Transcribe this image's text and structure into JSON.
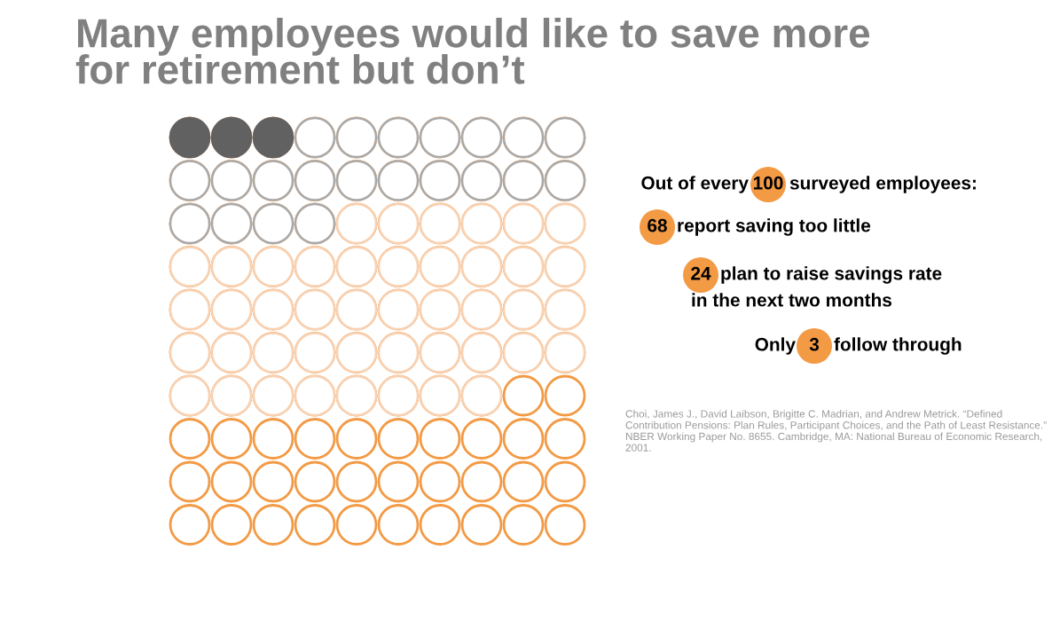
{
  "chart_data": {
    "type": "other",
    "title": "Many employees would like to save more\nfor retirement but don’t",
    "values": [
      100,
      68,
      24,
      3
    ],
    "data_labels": true,
    "colors": [
      "#f39a45",
      "#f8d2b4",
      "#a9a9a9",
      "#616161"
    ],
    "annotations": [
      "Out of every",
      "surveyed employees:",
      "report saving too little",
      "plan to raise savings rate",
      "in the next two months",
      "Only",
      "follow through",
      "Choi, James J., David Laibson, Brigitte C. Madrian, and Andrew Metrick. “Defined Contribution Pensions: Plan Rules, Participant Choices, and the Path of Least Resistance.” NBER Working Paper No. 8655. Cambridge, MA: National Bureau of Economic Research, 2001."
    ]
  }
}
